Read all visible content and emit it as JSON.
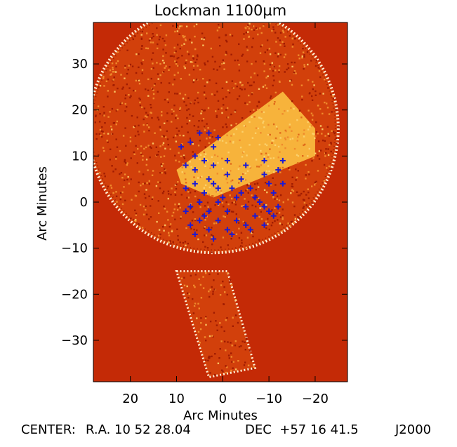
{
  "chart_data": {
    "type": "heatmap",
    "title": "Lockman 1100µm",
    "xlabel": "Arc Minutes",
    "ylabel": "Arc Minutes",
    "xlim": [
      28,
      -27
    ],
    "ylim": [
      -39,
      39
    ],
    "x_ticks": [
      20,
      10,
      0,
      -10,
      -20
    ],
    "x_tick_labels": [
      "20",
      "10",
      "0",
      "−10",
      "−20"
    ],
    "y_ticks": [
      30,
      20,
      10,
      0,
      -10,
      -20,
      -30
    ],
    "y_tick_labels": [
      "30",
      "20",
      "10",
      "0",
      "−10",
      "−20",
      "−30"
    ],
    "grid": false,
    "colors": {
      "background": "#c42a06",
      "map_base": "#d2400b",
      "speckle_dark": "#a01c02",
      "speckle_light": "#ef8a2c",
      "edge_noise": "#fff2d8",
      "overlap_region": "#f7b33b",
      "source_markers": "#1a1ad6"
    },
    "regions": [
      {
        "name": "coverage disk",
        "center": [
          2,
          16
        ],
        "radius": 27
      },
      {
        "name": "scan strip",
        "polygon": [
          [
            10,
            -15
          ],
          [
            -1,
            -15
          ],
          [
            -7,
            -36
          ],
          [
            3,
            -38
          ]
        ]
      },
      {
        "name": "deep overlap region",
        "polygon": [
          [
            10,
            7
          ],
          [
            -13,
            24
          ],
          [
            -20,
            16
          ],
          [
            -20,
            10
          ],
          [
            2,
            1
          ],
          [
            9,
            4
          ]
        ]
      }
    ],
    "markers": {
      "symbol": "+",
      "points": [
        [
          9,
          12
        ],
        [
          7,
          13
        ],
        [
          5,
          15
        ],
        [
          3,
          15
        ],
        [
          1,
          14
        ],
        [
          2,
          12
        ],
        [
          6,
          10
        ],
        [
          4,
          9
        ],
        [
          8,
          8
        ],
        [
          6,
          7
        ],
        [
          2,
          8
        ],
        [
          -1,
          9
        ],
        [
          -5,
          8
        ],
        [
          -9,
          9
        ],
        [
          -13,
          9
        ],
        [
          -12,
          7
        ],
        [
          -9,
          6
        ],
        [
          -4,
          5
        ],
        [
          -1,
          6
        ],
        [
          3,
          5
        ],
        [
          6,
          4
        ],
        [
          8,
          3
        ],
        [
          4,
          2
        ],
        [
          1,
          3
        ],
        [
          -2,
          3
        ],
        [
          -6,
          3
        ],
        [
          -10,
          4
        ],
        [
          -13,
          4
        ],
        [
          -11,
          2
        ],
        [
          -7,
          1
        ],
        [
          -3,
          1
        ],
        [
          1,
          0
        ],
        [
          5,
          0
        ],
        [
          7,
          -1
        ],
        [
          3,
          -2
        ],
        [
          -1,
          -2
        ],
        [
          -5,
          -1
        ],
        [
          -9,
          -1
        ],
        [
          -12,
          -1
        ],
        [
          -11,
          -3
        ],
        [
          -7,
          -3
        ],
        [
          -3,
          -4
        ],
        [
          1,
          -4
        ],
        [
          5,
          -4
        ],
        [
          7,
          -5
        ],
        [
          3,
          -6
        ],
        [
          -1,
          -6
        ],
        [
          -5,
          -5
        ],
        [
          -9,
          -5
        ],
        [
          -2,
          -7
        ],
        [
          2,
          -8
        ],
        [
          6,
          -7
        ],
        [
          4,
          -3
        ],
        [
          0,
          1
        ],
        [
          -4,
          2
        ],
        [
          8,
          -2
        ],
        [
          -6,
          -6
        ],
        [
          -8,
          0
        ],
        [
          2,
          4
        ],
        [
          -10,
          -2
        ]
      ]
    },
    "caption": {
      "label": "CENTER:",
      "ra": "R.A. 10 52 28.04",
      "dec": "DEC  +57 16 41.5",
      "epoch": "J2000"
    }
  }
}
